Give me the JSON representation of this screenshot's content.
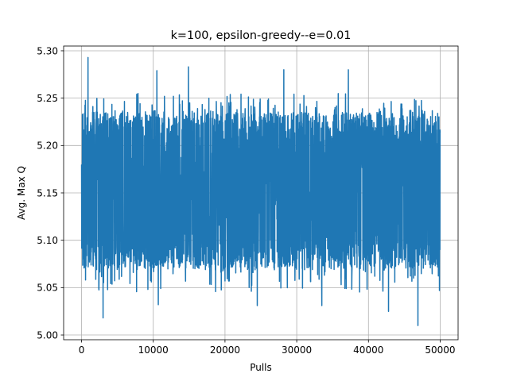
{
  "chart_data": {
    "type": "line",
    "title": "k=100, epsilon-greedy--e=0.01",
    "xlabel": "Pulls",
    "ylabel": "Avg. Max Q",
    "xlim": [
      -2500,
      52500
    ],
    "ylim": [
      4.995,
      5.305
    ],
    "xticks": [
      0,
      10000,
      20000,
      30000,
      40000,
      50000
    ],
    "xtick_labels": [
      "0",
      "10000",
      "20000",
      "30000",
      "40000",
      "50000"
    ],
    "yticks": [
      5.0,
      5.05,
      5.1,
      5.15,
      5.2,
      5.25,
      5.3
    ],
    "ytick_labels": [
      "5.00",
      "5.05",
      "5.10",
      "5.15",
      "5.20",
      "5.25",
      "5.30"
    ],
    "grid": true,
    "series": [
      {
        "color": "#1f77b4",
        "x_range": [
          0,
          50000
        ],
        "start_value": 5.18,
        "band_low": 5.07,
        "band_high": 5.235,
        "notable_points": [
          {
            "x": 900,
            "y": 5.293
          },
          {
            "x": 3000,
            "y": 5.018
          },
          {
            "x": 10500,
            "y": 5.279
          },
          {
            "x": 10700,
            "y": 5.032
          },
          {
            "x": 14900,
            "y": 5.283
          },
          {
            "x": 24500,
            "y": 5.031
          },
          {
            "x": 28200,
            "y": 5.28
          },
          {
            "x": 33500,
            "y": 5.031
          },
          {
            "x": 36900,
            "y": 5.049
          },
          {
            "x": 37200,
            "y": 5.28
          },
          {
            "x": 42800,
            "y": 5.025
          },
          {
            "x": 46900,
            "y": 5.01
          },
          {
            "x": 49900,
            "y": 5.047
          }
        ]
      }
    ]
  }
}
